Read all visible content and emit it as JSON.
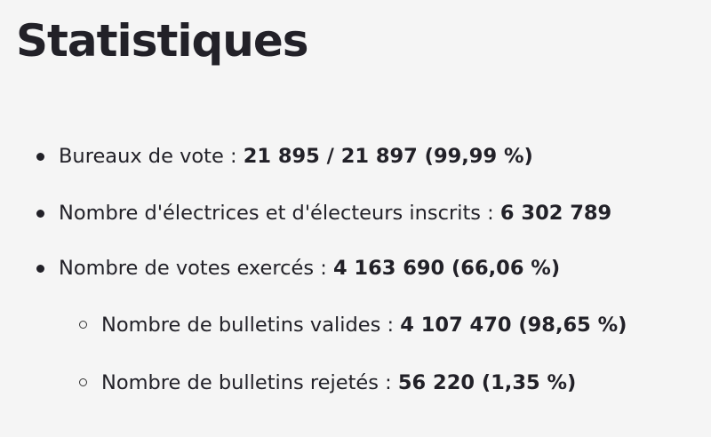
{
  "title": "Statistiques",
  "stats": [
    {
      "label": "Bureaux de vote : ",
      "value": "21 895 / 21 897 (99,99 %)",
      "level": 1
    },
    {
      "label": "Nombre d'électrices et d'électeurs inscrits : ",
      "value": "6 302 789",
      "level": 1
    },
    {
      "label": "Nombre de votes exercés : ",
      "value": "4 163 690 (66,06 %)",
      "level": 1
    },
    {
      "label": "Nombre de bulletins valides : ",
      "value": "4 107 470 (98,65 %)",
      "level": 2
    },
    {
      "label": "Nombre de bulletins rejetés : ",
      "value": "56 220 (1,35 %)",
      "level": 2
    }
  ]
}
